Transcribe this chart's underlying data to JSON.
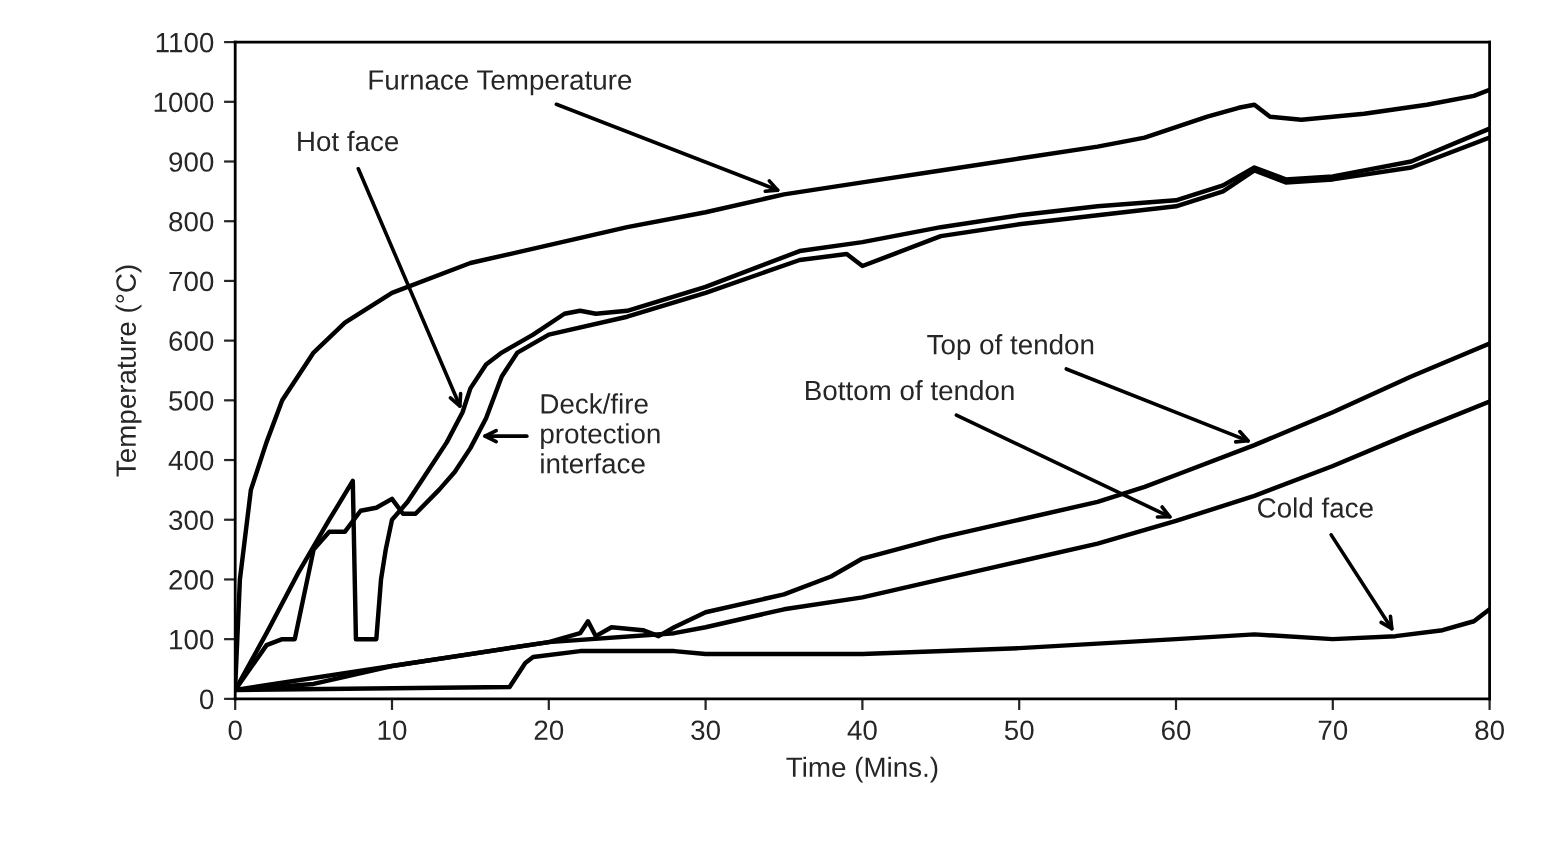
{
  "chart_data": {
    "type": "line",
    "xlabel": "Time (Mins.)",
    "ylabel": "Temperature (°C)",
    "xlim": [
      0,
      80
    ],
    "xticks": [
      0,
      10,
      20,
      30,
      40,
      50,
      60,
      70,
      80
    ],
    "ylim": [
      0,
      1100
    ],
    "yticks": [
      0,
      100,
      200,
      300,
      400,
      500,
      600,
      700,
      800,
      900,
      1000,
      1100
    ],
    "grid": false,
    "legend": false,
    "marker": "none",
    "line_style": "solid",
    "series": [
      {
        "color": "#000000",
        "x": [
          0,
          0.3,
          1,
          2,
          3,
          5,
          7,
          10,
          15,
          20,
          25,
          30,
          35,
          40,
          45,
          50,
          55,
          58,
          62,
          64,
          65,
          66,
          68,
          72,
          76,
          79,
          80
        ],
        "values": [
          20,
          200,
          350,
          430,
          500,
          580,
          630,
          680,
          730,
          760,
          790,
          815,
          845,
          865,
          885,
          905,
          925,
          940,
          975,
          990,
          995,
          975,
          970,
          980,
          995,
          1010,
          1020
        ]
      },
      {
        "color": "#000000",
        "x": [
          0,
          2,
          4,
          6,
          7.5,
          7.7,
          9,
          9.3,
          9.6,
          10,
          11,
          12,
          13.5,
          14.5,
          15,
          16,
          17,
          19,
          21,
          22,
          23,
          25,
          30,
          36,
          40,
          45,
          50,
          55,
          60,
          63,
          65,
          67,
          70,
          75,
          80
        ],
        "values": [
          15,
          110,
          210,
          300,
          365,
          100,
          100,
          200,
          250,
          300,
          330,
          370,
          430,
          480,
          520,
          560,
          580,
          610,
          645,
          650,
          645,
          650,
          690,
          750,
          765,
          790,
          810,
          825,
          835,
          860,
          890,
          870,
          875,
          900,
          955
        ]
      },
      {
        "color": "#000000",
        "x": [
          0,
          2,
          3,
          3.8,
          5,
          6,
          7,
          8,
          9,
          10,
          10.7,
          11.5,
          13,
          14,
          15,
          16,
          17,
          18,
          20,
          25,
          30,
          36,
          39,
          40,
          42,
          45,
          50,
          55,
          60,
          63,
          65,
          67,
          70,
          75,
          80
        ],
        "values": [
          15,
          90,
          100,
          100,
          250,
          280,
          280,
          315,
          320,
          335,
          310,
          310,
          350,
          380,
          420,
          470,
          540,
          580,
          610,
          640,
          680,
          735,
          745,
          725,
          745,
          775,
          795,
          810,
          825,
          850,
          885,
          865,
          870,
          890,
          940
        ]
      },
      {
        "color": "#000000",
        "x": [
          0,
          5,
          10,
          15,
          20,
          22,
          22.5,
          23,
          24,
          26,
          27,
          28,
          30,
          35,
          38,
          40,
          45,
          50,
          55,
          58,
          60,
          65,
          70,
          75,
          80
        ],
        "values": [
          15,
          25,
          55,
          75,
          95,
          110,
          130,
          105,
          120,
          115,
          105,
          120,
          145,
          175,
          205,
          235,
          270,
          300,
          330,
          355,
          375,
          425,
          480,
          540,
          595
        ]
      },
      {
        "color": "#000000",
        "x": [
          0,
          10,
          20,
          28,
          30,
          35,
          40,
          45,
          50,
          55,
          60,
          65,
          70,
          75,
          80
        ],
        "values": [
          15,
          55,
          95,
          110,
          120,
          150,
          170,
          200,
          230,
          260,
          298,
          340,
          390,
          445,
          498
        ]
      },
      {
        "color": "#000000",
        "x": [
          0,
          17.5,
          18.5,
          19,
          22,
          28,
          30,
          40,
          50,
          60,
          65,
          70,
          74,
          77,
          79,
          80
        ],
        "values": [
          15,
          20,
          60,
          70,
          80,
          80,
          75,
          75,
          85,
          100,
          108,
          100,
          105,
          115,
          130,
          150
        ]
      }
    ],
    "annotations": [
      {
        "text": "Furnace Temperature",
        "x": 35,
        "y": 848
      },
      {
        "text": "Hot face",
        "x": 14.5,
        "y": 480
      },
      {
        "text": "Deck/fire\nprotection\ninterface",
        "x": 15.5,
        "y": 440
      },
      {
        "text": "Top of tendon",
        "x": 65,
        "y": 428
      },
      {
        "text": "Bottom of tendon",
        "x": 60,
        "y": 300
      },
      {
        "text": "Cold face",
        "x": 74,
        "y": 108
      }
    ]
  }
}
